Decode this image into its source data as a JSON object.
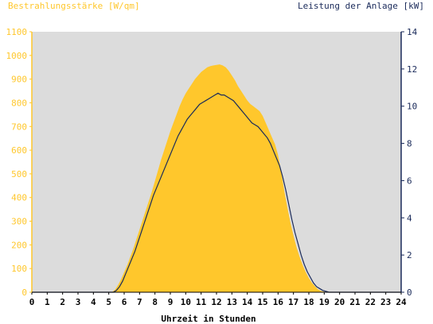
{
  "chart_data": {
    "type": "area",
    "title_left": "Bestrahlungsstärke [W/qm]",
    "title_right": "Leistung der Anlage [kW]",
    "xlabel": "Uhrzeit in Stunden",
    "xlim": [
      0,
      24
    ],
    "x_ticks": [
      "0",
      "1",
      "2",
      "3",
      "4",
      "5",
      "6",
      "7",
      "8",
      "9",
      "10",
      "11",
      "12",
      "13",
      "14",
      "15",
      "16",
      "17",
      "18",
      "19",
      "20",
      "21",
      "22",
      "23",
      "24"
    ],
    "y_left": {
      "lim": [
        0,
        1100
      ],
      "ticks": [
        "0",
        "100",
        "200",
        "300",
        "400",
        "500",
        "600",
        "700",
        "800",
        "900",
        "1000",
        "1100"
      ]
    },
    "y_right": {
      "lim": [
        0,
        14
      ],
      "ticks": [
        "0",
        "2",
        "4",
        "6",
        "8",
        "10",
        "12",
        "14"
      ]
    },
    "colors": {
      "plot_bg": "#dcdcdc",
      "irradiance_fill": "#ffc72c",
      "power_line": "#1a2a5a",
      "left_axis": "#ffc72c",
      "right_axis": "#1a2a5a"
    },
    "series": [
      {
        "axis": "left",
        "kind": "area",
        "x": [
          0,
          5.2,
          5.4,
          5.6,
          5.8,
          6.0,
          6.2,
          6.4,
          6.6,
          6.8,
          7.0,
          7.2,
          7.4,
          7.6,
          7.8,
          8.0,
          8.2,
          8.4,
          8.6,
          8.8,
          9.0,
          9.2,
          9.4,
          9.6,
          9.8,
          10.0,
          10.2,
          10.4,
          10.6,
          10.8,
          11.0,
          11.2,
          11.4,
          11.6,
          11.8,
          12.0,
          12.2,
          12.4,
          12.6,
          12.8,
          13.0,
          13.2,
          13.4,
          13.6,
          13.8,
          14.0,
          14.2,
          14.4,
          14.6,
          14.8,
          15.0,
          15.2,
          15.4,
          15.6,
          15.8,
          16.0,
          16.2,
          16.4,
          16.6,
          16.8,
          17.0,
          17.2,
          17.4,
          17.6,
          17.8,
          18.0,
          18.2,
          18.4,
          18.6,
          18.8,
          19.0,
          19.2,
          19.4,
          19.6,
          19.8,
          20.0,
          20.2,
          20.4,
          24
        ],
        "values": [
          0,
          0,
          10,
          30,
          55,
          85,
          115,
          150,
          185,
          225,
          265,
          305,
          345,
          385,
          425,
          470,
          515,
          560,
          600,
          640,
          680,
          715,
          750,
          785,
          815,
          840,
          860,
          880,
          900,
          915,
          930,
          940,
          950,
          955,
          958,
          960,
          962,
          958,
          950,
          935,
          915,
          895,
          870,
          850,
          830,
          810,
          795,
          785,
          775,
          765,
          745,
          715,
          685,
          655,
          625,
          580,
          510,
          430,
          360,
          295,
          240,
          190,
          150,
          115,
          85,
          60,
          40,
          25,
          12,
          5,
          2,
          0,
          0,
          0,
          0,
          0,
          0,
          0,
          0
        ]
      },
      {
        "axis": "right",
        "kind": "line",
        "x": [
          0,
          5.3,
          5.5,
          5.7,
          5.9,
          6.1,
          6.3,
          6.5,
          6.7,
          6.9,
          7.1,
          7.3,
          7.5,
          7.7,
          7.9,
          8.1,
          8.3,
          8.5,
          8.7,
          8.9,
          9.1,
          9.3,
          9.5,
          9.7,
          9.9,
          10.1,
          10.3,
          10.5,
          10.7,
          10.9,
          11.1,
          11.3,
          11.5,
          11.7,
          11.9,
          12.1,
          12.3,
          12.5,
          12.7,
          12.9,
          13.1,
          13.3,
          13.5,
          13.7,
          13.9,
          14.1,
          14.3,
          14.5,
          14.7,
          14.9,
          15.1,
          15.3,
          15.5,
          15.7,
          15.9,
          16.1,
          16.3,
          16.5,
          16.7,
          16.9,
          17.1,
          17.3,
          17.5,
          17.7,
          17.9,
          18.1,
          18.3,
          18.5,
          18.7,
          18.9,
          19.1,
          19.3,
          19.5,
          19.7,
          19.9,
          20.1,
          20.3,
          24
        ],
        "values": [
          0,
          0,
          0.1,
          0.3,
          0.6,
          1.0,
          1.4,
          1.8,
          2.2,
          2.7,
          3.2,
          3.7,
          4.2,
          4.7,
          5.2,
          5.6,
          6.0,
          6.4,
          6.8,
          7.2,
          7.6,
          8.0,
          8.4,
          8.7,
          9.0,
          9.3,
          9.5,
          9.7,
          9.9,
          10.1,
          10.2,
          10.3,
          10.4,
          10.5,
          10.6,
          10.7,
          10.6,
          10.6,
          10.5,
          10.4,
          10.3,
          10.1,
          9.9,
          9.7,
          9.5,
          9.3,
          9.1,
          9.0,
          8.9,
          8.7,
          8.5,
          8.3,
          8.0,
          7.6,
          7.2,
          6.8,
          6.2,
          5.5,
          4.7,
          3.9,
          3.2,
          2.6,
          2.0,
          1.5,
          1.1,
          0.8,
          0.5,
          0.3,
          0.2,
          0.1,
          0.05,
          0,
          0,
          0,
          0,
          0,
          0,
          0
        ]
      }
    ]
  }
}
